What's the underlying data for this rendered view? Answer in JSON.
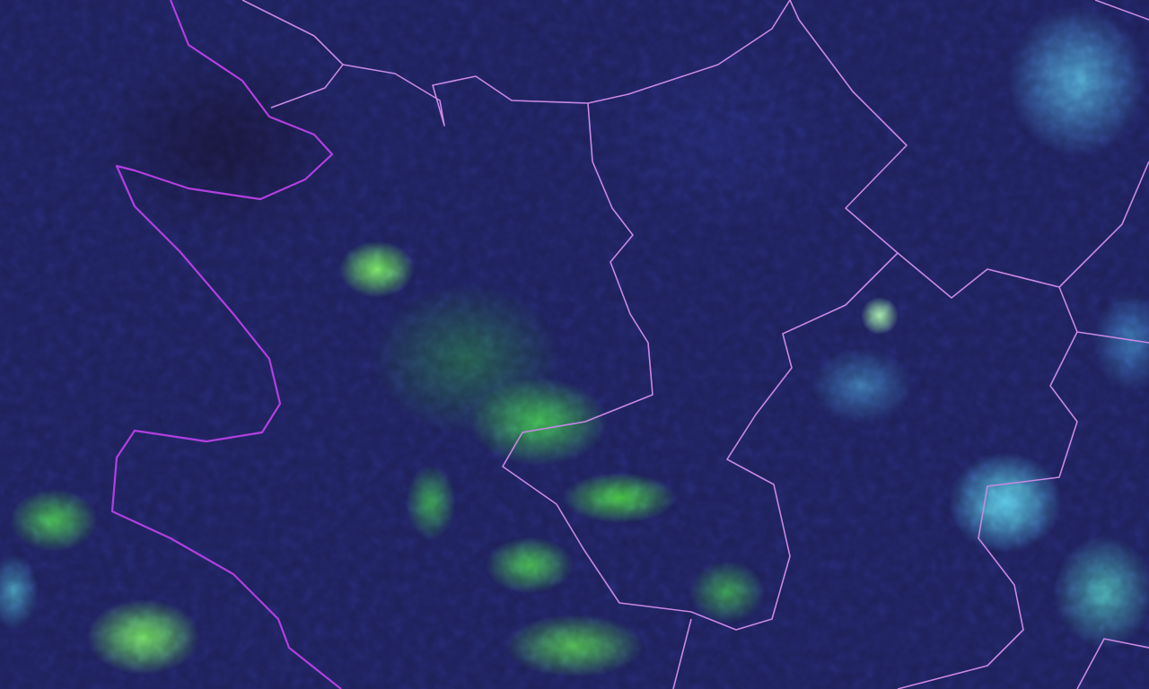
{
  "map": {
    "type": "satellite-imagery",
    "colors": {
      "background": "#1d2058",
      "vegetation_green": "#5ae650",
      "cloud_cyan": "#5ad2f0",
      "primary_border": "#b13fe0",
      "secondary_border": "#c888e6"
    }
  }
}
